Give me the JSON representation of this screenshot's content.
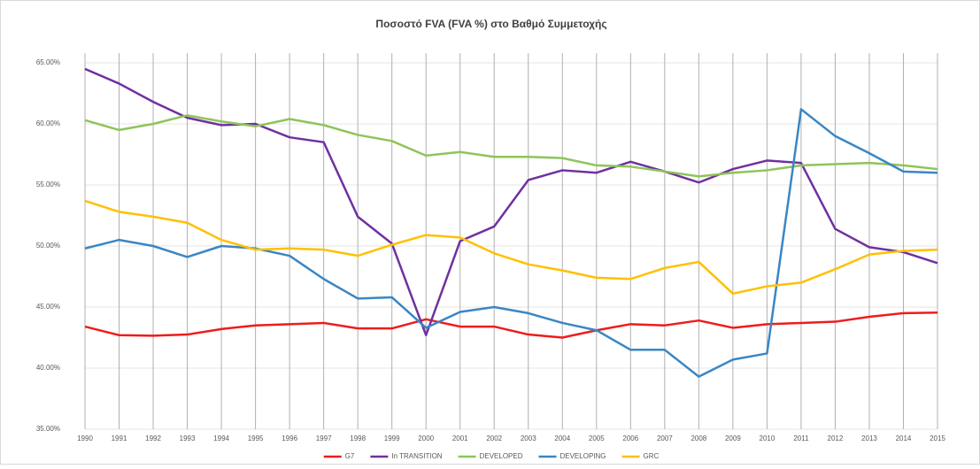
{
  "chart_data": {
    "type": "line",
    "title": "Ποσοστό FVA (FVA %) στο Βαθμό Συμμετοχής",
    "categories": [
      "1990",
      "1991",
      "1992",
      "1993",
      "1994",
      "1995",
      "1996",
      "1997",
      "1998",
      "1999",
      "2000",
      "2001",
      "2002",
      "2003",
      "2004",
      "2005",
      "2006",
      "2007",
      "2008",
      "2009",
      "2010",
      "2011",
      "2012",
      "2013",
      "2014",
      "2015"
    ],
    "series": [
      {
        "name": "G7",
        "color": "#ee1c1c",
        "values": [
          43.4,
          42.7,
          42.65,
          42.75,
          43.2,
          43.5,
          43.6,
          43.7,
          43.25,
          43.25,
          44.0,
          43.4,
          43.4,
          42.75,
          42.5,
          43.1,
          43.6,
          43.5,
          43.9,
          43.3,
          43.6,
          43.7,
          43.8,
          44.2,
          44.5,
          44.55
        ]
      },
      {
        "name": "In TRANSITION",
        "color": "#7030a0",
        "values": [
          64.5,
          63.3,
          61.8,
          60.5,
          59.9,
          60.0,
          58.9,
          58.5,
          52.4,
          50.2,
          42.7,
          50.4,
          51.6,
          55.4,
          56.2,
          56.0,
          56.9,
          56.1,
          55.2,
          56.3,
          57.0,
          56.8,
          51.4,
          49.9,
          49.5,
          48.6
        ]
      },
      {
        "name": "DEVELOPED",
        "color": "#8fc45a",
        "values": [
          60.3,
          59.5,
          60.0,
          60.7,
          60.2,
          59.8,
          60.4,
          59.9,
          59.1,
          58.6,
          57.4,
          57.7,
          57.3,
          57.3,
          57.2,
          56.6,
          56.5,
          56.1,
          55.7,
          56.0,
          56.2,
          56.6,
          56.7,
          56.8,
          56.6,
          56.3
        ]
      },
      {
        "name": "DEVELOPING",
        "color": "#3a86c4",
        "values": [
          49.8,
          50.5,
          50.0,
          49.1,
          50.0,
          49.8,
          49.2,
          47.3,
          45.7,
          45.8,
          43.3,
          44.6,
          45.0,
          44.5,
          43.7,
          43.1,
          41.5,
          41.5,
          39.3,
          40.7,
          41.2,
          61.2,
          59.0,
          57.6,
          56.1,
          56.0
        ]
      },
      {
        "name": "GRC",
        "color": "#ffc000",
        "values": [
          53.7,
          52.8,
          52.4,
          51.9,
          50.5,
          49.7,
          49.8,
          49.7,
          49.2,
          50.1,
          50.9,
          50.7,
          49.4,
          48.5,
          48.0,
          47.4,
          47.3,
          48.2,
          48.7,
          46.1,
          46.7,
          47.0,
          48.1,
          49.3,
          49.6,
          49.7
        ]
      }
    ],
    "ylim": [
      35,
      65
    ],
    "yticks": [
      {
        "value": 35,
        "label": "35.00%"
      },
      {
        "value": 40,
        "label": "40.00%"
      },
      {
        "value": 45,
        "label": "45.00%"
      },
      {
        "value": 50,
        "label": "50.00%"
      },
      {
        "value": 55,
        "label": "55.00%"
      },
      {
        "value": 60,
        "label": "60.00%"
      },
      {
        "value": 65,
        "label": "65.00%"
      }
    ],
    "grid": true,
    "legend": "bottom"
  }
}
